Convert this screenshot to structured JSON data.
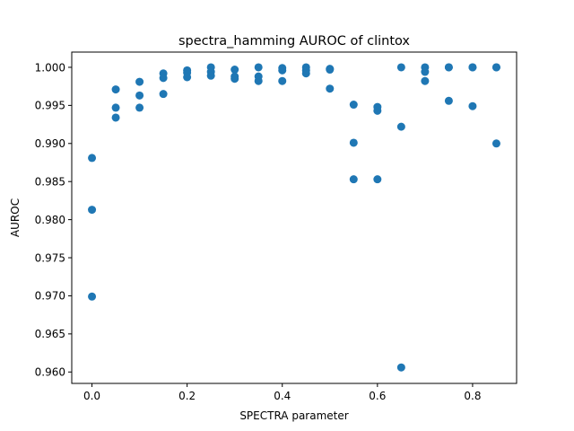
{
  "chart_data": {
    "type": "scatter",
    "title": "spectra_hamming AUROC of clintox",
    "xlabel": "SPECTRA parameter",
    "ylabel": "AUROC",
    "xlim": [
      -0.0425,
      0.8925
    ],
    "ylim": [
      0.9585,
      1.002
    ],
    "xticks": [
      0.0,
      0.2,
      0.4,
      0.6,
      0.8
    ],
    "xtick_labels": [
      "0.0",
      "0.2",
      "0.4",
      "0.6",
      "0.8"
    ],
    "yticks": [
      0.96,
      0.965,
      0.97,
      0.975,
      0.98,
      0.985,
      0.99,
      0.995,
      1.0
    ],
    "ytick_labels": [
      "0.960",
      "0.965",
      "0.970",
      "0.975",
      "0.980",
      "0.985",
      "0.990",
      "0.995",
      "1.000"
    ],
    "grid": false,
    "marker_color": "#1f77b4",
    "points": [
      {
        "x": 0.0,
        "y": 0.9881
      },
      {
        "x": 0.0,
        "y": 0.9813
      },
      {
        "x": 0.0,
        "y": 0.9699
      },
      {
        "x": 0.05,
        "y": 0.9971
      },
      {
        "x": 0.05,
        "y": 0.9947
      },
      {
        "x": 0.05,
        "y": 0.9934
      },
      {
        "x": 0.1,
        "y": 0.9981
      },
      {
        "x": 0.1,
        "y": 0.9963
      },
      {
        "x": 0.1,
        "y": 0.9947
      },
      {
        "x": 0.15,
        "y": 0.9992
      },
      {
        "x": 0.15,
        "y": 0.9986
      },
      {
        "x": 0.15,
        "y": 0.9965
      },
      {
        "x": 0.2,
        "y": 0.9996
      },
      {
        "x": 0.2,
        "y": 0.9993
      },
      {
        "x": 0.2,
        "y": 0.9987
      },
      {
        "x": 0.25,
        "y": 1.0
      },
      {
        "x": 0.25,
        "y": 0.9994
      },
      {
        "x": 0.25,
        "y": 0.9989
      },
      {
        "x": 0.3,
        "y": 0.9997
      },
      {
        "x": 0.3,
        "y": 0.9988
      },
      {
        "x": 0.3,
        "y": 0.9985
      },
      {
        "x": 0.35,
        "y": 1.0
      },
      {
        "x": 0.35,
        "y": 0.9988
      },
      {
        "x": 0.35,
        "y": 0.9982
      },
      {
        "x": 0.4,
        "y": 0.9999
      },
      {
        "x": 0.4,
        "y": 0.9996
      },
      {
        "x": 0.4,
        "y": 0.9982
      },
      {
        "x": 0.45,
        "y": 1.0
      },
      {
        "x": 0.45,
        "y": 0.9996
      },
      {
        "x": 0.45,
        "y": 0.9992
      },
      {
        "x": 0.5,
        "y": 0.9998
      },
      {
        "x": 0.5,
        "y": 0.9997
      },
      {
        "x": 0.5,
        "y": 0.9972
      },
      {
        "x": 0.55,
        "y": 0.9951
      },
      {
        "x": 0.55,
        "y": 0.9901
      },
      {
        "x": 0.55,
        "y": 0.9853
      },
      {
        "x": 0.6,
        "y": 0.9948
      },
      {
        "x": 0.6,
        "y": 0.9943
      },
      {
        "x": 0.6,
        "y": 0.9853
      },
      {
        "x": 0.65,
        "y": 1.0
      },
      {
        "x": 0.65,
        "y": 0.9922
      },
      {
        "x": 0.65,
        "y": 0.9606
      },
      {
        "x": 0.7,
        "y": 1.0
      },
      {
        "x": 0.7,
        "y": 0.9994
      },
      {
        "x": 0.7,
        "y": 0.9982
      },
      {
        "x": 0.75,
        "y": 1.0
      },
      {
        "x": 0.75,
        "y": 1.0
      },
      {
        "x": 0.75,
        "y": 0.9956
      },
      {
        "x": 0.8,
        "y": 1.0
      },
      {
        "x": 0.8,
        "y": 1.0
      },
      {
        "x": 0.8,
        "y": 0.9949
      },
      {
        "x": 0.85,
        "y": 1.0
      },
      {
        "x": 0.85,
        "y": 1.0
      },
      {
        "x": 0.85,
        "y": 0.99
      }
    ]
  }
}
